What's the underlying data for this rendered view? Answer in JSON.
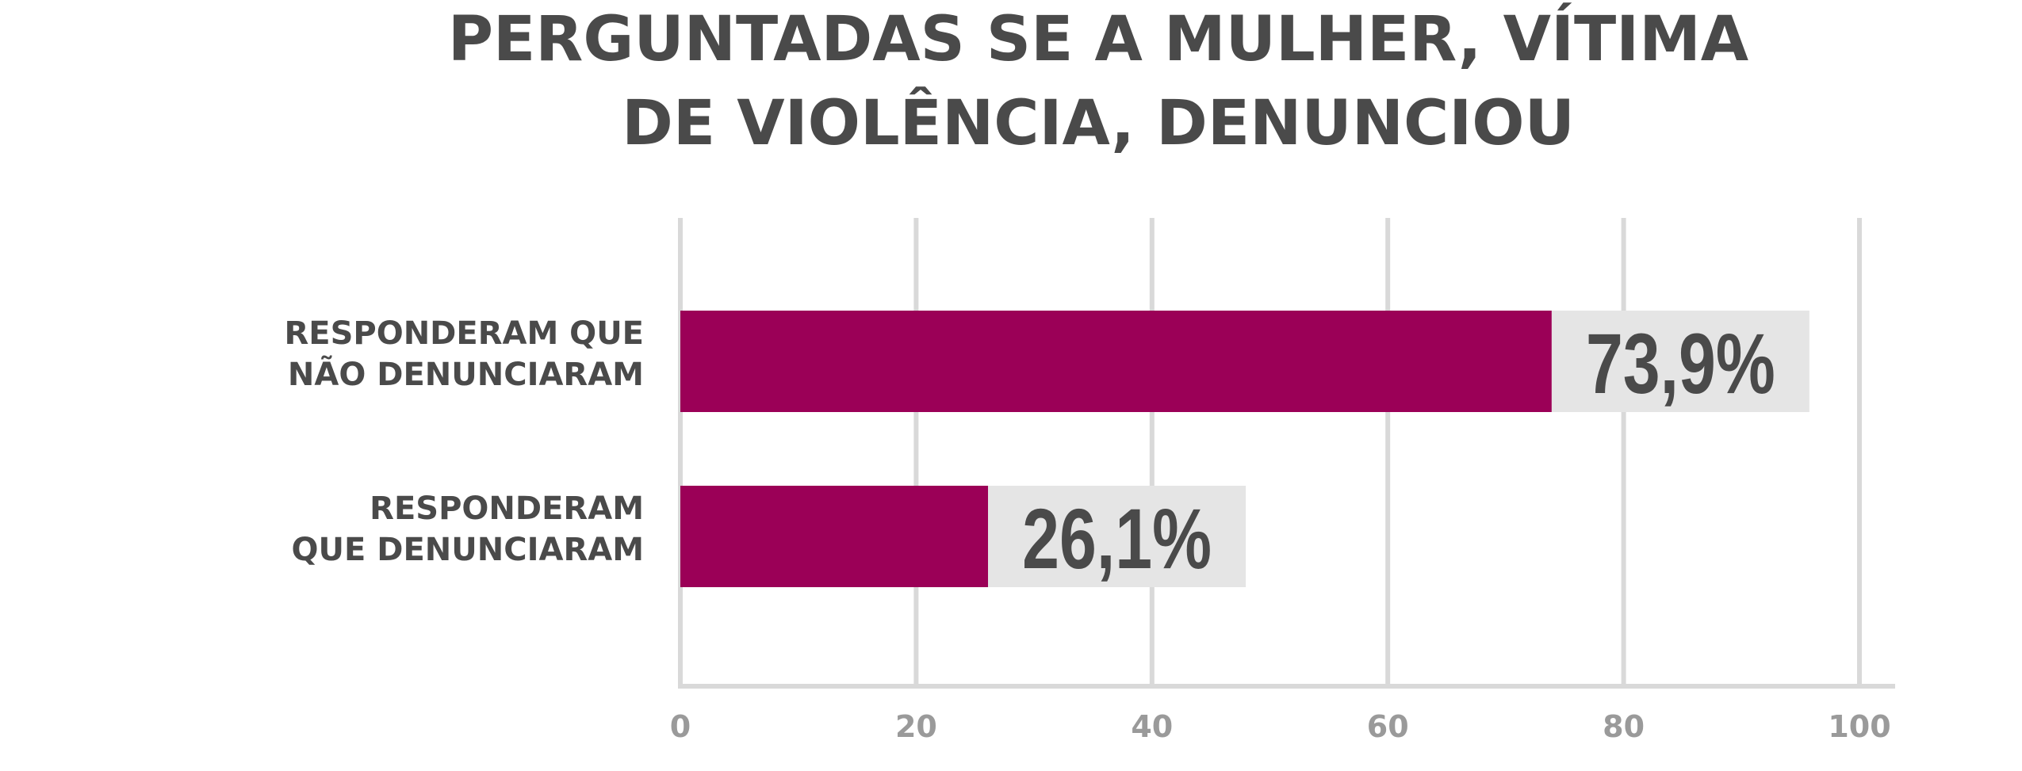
{
  "chart_data": {
    "type": "bar",
    "orientation": "horizontal",
    "title": [
      "PERGUNTADAS SE A MULHER, VÍTIMA",
      "DE  VIOLÊNCIA, DENUNCIOU"
    ],
    "categories": [
      [
        "RESPONDERAM QUE",
        "NÃO DENUNCIARAM"
      ],
      [
        "RESPONDERAM",
        "QUE DENUNCIARAM"
      ]
    ],
    "values": [
      73.9,
      26.1
    ],
    "value_labels": [
      "73,9%",
      "26,1%"
    ],
    "xlim": [
      0,
      100
    ],
    "x_ticks": [
      0,
      20,
      40,
      60,
      80,
      100
    ],
    "x_tick_labels": [
      "0",
      "20",
      "40",
      "60",
      "80",
      "100"
    ],
    "grid": true,
    "legend": "none",
    "colors": {
      "bar": "#9b0057",
      "value_box": "#e5e5e5",
      "grid": "#d9d9d9",
      "title": "#4a4a4a",
      "ticks": "#9a9a9a"
    }
  }
}
